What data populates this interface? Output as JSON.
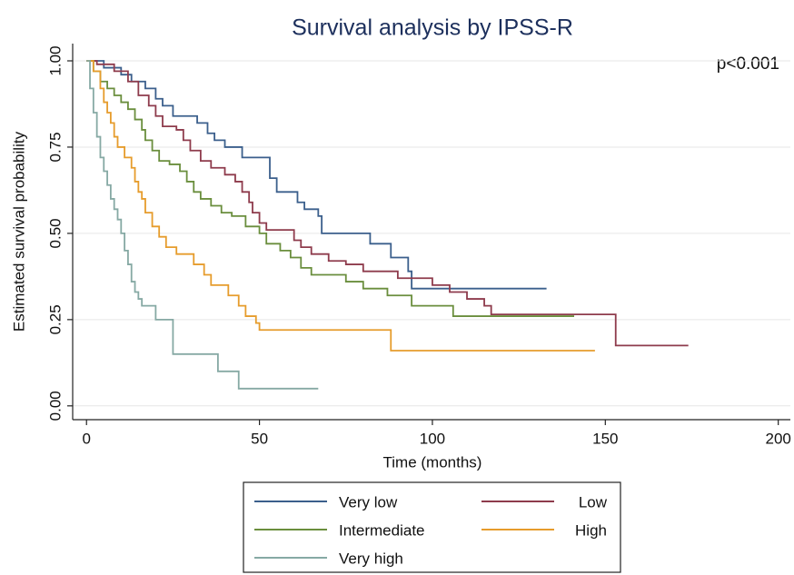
{
  "chart_data": {
    "type": "step",
    "title": "Survival analysis by IPSS-R",
    "annotation": "p<0.001",
    "x_label": "Time (months)",
    "y_label": "Estimated survival probability",
    "xlim": [
      -4,
      203.5
    ],
    "ylim": [
      -0.04,
      1.05
    ],
    "xticks": [
      0,
      50,
      100,
      150,
      200
    ],
    "yticks": [
      {
        "value": 0,
        "label": "0.00"
      },
      {
        "value": 0.25,
        "label": "0.25"
      },
      {
        "value": 0.5,
        "label": "0.50"
      },
      {
        "value": 0.75,
        "label": "0.75"
      },
      {
        "value": 1,
        "label": "1.00"
      }
    ],
    "grid": true,
    "series": [
      {
        "name": "Very low",
        "color": "#3b5f8c",
        "x": [
          0,
          5,
          10,
          13,
          17,
          20,
          22,
          25,
          32,
          35,
          37,
          40,
          45,
          53,
          55,
          61,
          63,
          67,
          68,
          82,
          88,
          93,
          94,
          133
        ],
        "values": [
          1,
          0.98,
          0.96,
          0.94,
          0.92,
          0.89,
          0.87,
          0.84,
          0.82,
          0.79,
          0.77,
          0.75,
          0.72,
          0.66,
          0.62,
          0.59,
          0.57,
          0.55,
          0.5,
          0.47,
          0.43,
          0.39,
          0.34,
          0.34
        ]
      },
      {
        "name": "Low",
        "color": "#8e3b4c",
        "x": [
          0,
          3,
          8,
          12,
          15,
          18,
          20,
          22,
          26,
          28,
          30,
          33,
          36,
          40,
          43,
          45,
          47,
          48,
          50,
          52,
          60,
          62,
          65,
          70,
          75,
          80,
          90,
          100,
          105,
          110,
          115,
          117,
          153,
          174
        ],
        "values": [
          1,
          0.99,
          0.97,
          0.94,
          0.9,
          0.87,
          0.84,
          0.81,
          0.8,
          0.77,
          0.74,
          0.71,
          0.69,
          0.67,
          0.65,
          0.62,
          0.59,
          0.56,
          0.53,
          0.51,
          0.48,
          0.46,
          0.44,
          0.42,
          0.41,
          0.39,
          0.37,
          0.35,
          0.33,
          0.31,
          0.29,
          0.265,
          0.175,
          0.175
        ]
      },
      {
        "name": "Intermediate",
        "color": "#6a8e3d",
        "x": [
          0,
          2,
          4,
          6,
          8,
          10,
          12,
          14,
          16,
          17,
          19,
          21,
          24,
          27,
          29,
          31,
          33,
          36,
          39,
          42,
          46,
          50,
          52,
          56,
          59,
          62,
          65,
          75,
          80,
          87,
          94,
          106,
          141
        ],
        "values": [
          1,
          0.97,
          0.94,
          0.92,
          0.9,
          0.88,
          0.86,
          0.83,
          0.8,
          0.77,
          0.74,
          0.71,
          0.7,
          0.68,
          0.65,
          0.62,
          0.6,
          0.58,
          0.56,
          0.55,
          0.52,
          0.5,
          0.47,
          0.45,
          0.43,
          0.4,
          0.38,
          0.36,
          0.34,
          0.32,
          0.29,
          0.26,
          0.26
        ]
      },
      {
        "name": "High",
        "color": "#e69c2c",
        "x": [
          0,
          2,
          4,
          5,
          6,
          7,
          8,
          9,
          11,
          13,
          14,
          15,
          16,
          17,
          19,
          21,
          23,
          26,
          31,
          34,
          36,
          41,
          44,
          46,
          49,
          50,
          88,
          147
        ],
        "values": [
          1,
          0.97,
          0.92,
          0.88,
          0.85,
          0.82,
          0.78,
          0.75,
          0.72,
          0.69,
          0.65,
          0.62,
          0.6,
          0.56,
          0.52,
          0.49,
          0.46,
          0.44,
          0.41,
          0.38,
          0.35,
          0.32,
          0.29,
          0.26,
          0.24,
          0.22,
          0.16,
          0.16
        ]
      },
      {
        "name": "Very high",
        "color": "#86a9a4",
        "x": [
          0,
          1,
          2,
          3,
          4,
          5,
          6,
          7,
          8,
          9,
          10,
          11,
          12,
          13,
          14,
          15,
          16,
          20,
          25,
          38,
          44,
          67
        ],
        "values": [
          1,
          0.92,
          0.85,
          0.78,
          0.72,
          0.68,
          0.64,
          0.6,
          0.57,
          0.54,
          0.5,
          0.45,
          0.41,
          0.36,
          0.33,
          0.31,
          0.29,
          0.25,
          0.15,
          0.1,
          0.05,
          0.05
        ]
      }
    ]
  }
}
